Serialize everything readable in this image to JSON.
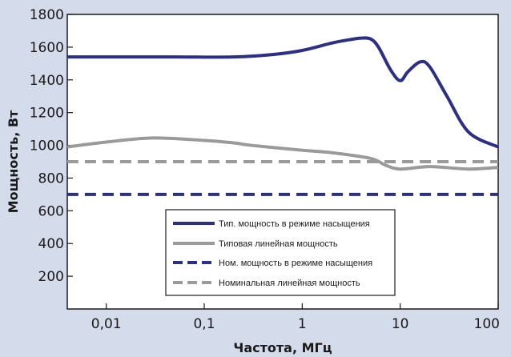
{
  "chart_data": {
    "type": "line",
    "xscale": "log",
    "xlim": [
      0.004,
      100
    ],
    "ylim": [
      0,
      1800
    ],
    "grid": false,
    "legend_placement": "bottom-center",
    "xlabel": "Частота, МГц",
    "ylabel": "Мощность, Вт",
    "x_ticks": [
      0.01,
      0.1,
      1,
      10,
      100
    ],
    "x_tick_labels": [
      "0,01",
      "0,1",
      "1",
      "10",
      "100"
    ],
    "y_ticks": [
      200,
      400,
      600,
      800,
      1000,
      1200,
      1400,
      1600,
      1800
    ],
    "y_tick_labels": [
      "200",
      "400",
      "600",
      "800",
      "1000",
      "1200",
      "1400",
      "1600",
      "1800"
    ],
    "series": [
      {
        "name": "Тип. мощность в режиме насыщения",
        "color": "#2b2f86",
        "style": "solid",
        "x": [
          0.004,
          0.01,
          0.05,
          0.2,
          0.5,
          1,
          2,
          3,
          4,
          5,
          6,
          8,
          10,
          12,
          16,
          20,
          30,
          50,
          100
        ],
        "y": [
          1540,
          1540,
          1540,
          1540,
          1555,
          1580,
          1625,
          1645,
          1655,
          1650,
          1600,
          1460,
          1395,
          1450,
          1510,
          1480,
          1300,
          1080,
          990
        ]
      },
      {
        "name": "Типовая линейная мощность",
        "color": "#9a9a9a",
        "style": "solid",
        "x": [
          0.004,
          0.01,
          0.03,
          0.1,
          0.2,
          0.3,
          1,
          2,
          5,
          7,
          10,
          20,
          50,
          100
        ],
        "y": [
          990,
          1020,
          1045,
          1030,
          1015,
          1000,
          970,
          955,
          920,
          880,
          855,
          870,
          855,
          865
        ]
      },
      {
        "name": "Ном. мощность в режиме насыщения",
        "color": "#2b2f86",
        "style": "dashed",
        "x": [
          0.004,
          100
        ],
        "y": [
          700,
          700
        ]
      },
      {
        "name": "Номинальная линейная мощность",
        "color": "#9a9a9a",
        "style": "dashed",
        "x": [
          0.004,
          100
        ],
        "y": [
          900,
          900
        ]
      }
    ]
  }
}
